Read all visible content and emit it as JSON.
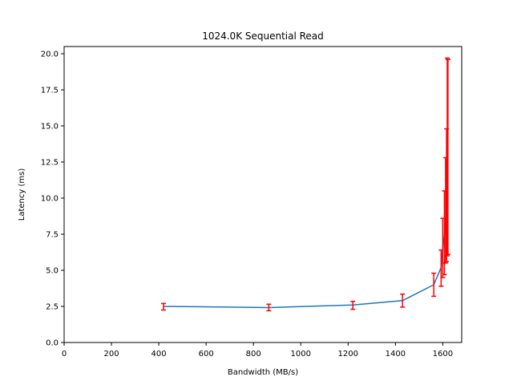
{
  "chart_data": {
    "type": "line",
    "title": "1024.0K  Sequential Read",
    "xlabel": "Bandwidth (MB/s)",
    "ylabel": "Latency (ms)",
    "xlim": [
      0,
      1680
    ],
    "ylim": [
      0,
      20.5
    ],
    "x_ticks": [
      0,
      200,
      400,
      600,
      800,
      1000,
      1200,
      1400,
      1600
    ],
    "y_ticks": [
      0.0,
      2.5,
      5.0,
      7.5,
      10.0,
      12.5,
      15.0,
      17.5,
      20.0
    ],
    "grid": false,
    "series": [
      {
        "color": "#1f77b4",
        "error_color": "#ff0000",
        "points": [
          {
            "x": 420,
            "y": 2.5,
            "lo": 2.25,
            "hi": 2.7
          },
          {
            "x": 865,
            "y": 2.42,
            "lo": 2.2,
            "hi": 2.65
          },
          {
            "x": 1220,
            "y": 2.6,
            "lo": 2.3,
            "hi": 2.85
          },
          {
            "x": 1430,
            "y": 2.9,
            "lo": 2.45,
            "hi": 3.35
          },
          {
            "x": 1562,
            "y": 4.0,
            "lo": 3.2,
            "hi": 4.8
          },
          {
            "x": 1593,
            "y": 5.2,
            "lo": 3.9,
            "hi": 6.4
          },
          {
            "x": 1600,
            "y": 6.5,
            "lo": 4.5,
            "hi": 8.6
          },
          {
            "x": 1607,
            "y": 7.5,
            "lo": 4.7,
            "hi": 10.5
          },
          {
            "x": 1612,
            "y": 8.5,
            "lo": 5.5,
            "hi": 12.8
          },
          {
            "x": 1616,
            "y": 10.0,
            "lo": 5.6,
            "hi": 14.8
          },
          {
            "x": 1619,
            "y": 12.0,
            "lo": 6.0,
            "hi": 19.7
          },
          {
            "x": 1622,
            "y": 12.6,
            "lo": 6.1,
            "hi": 19.6
          }
        ]
      }
    ]
  }
}
